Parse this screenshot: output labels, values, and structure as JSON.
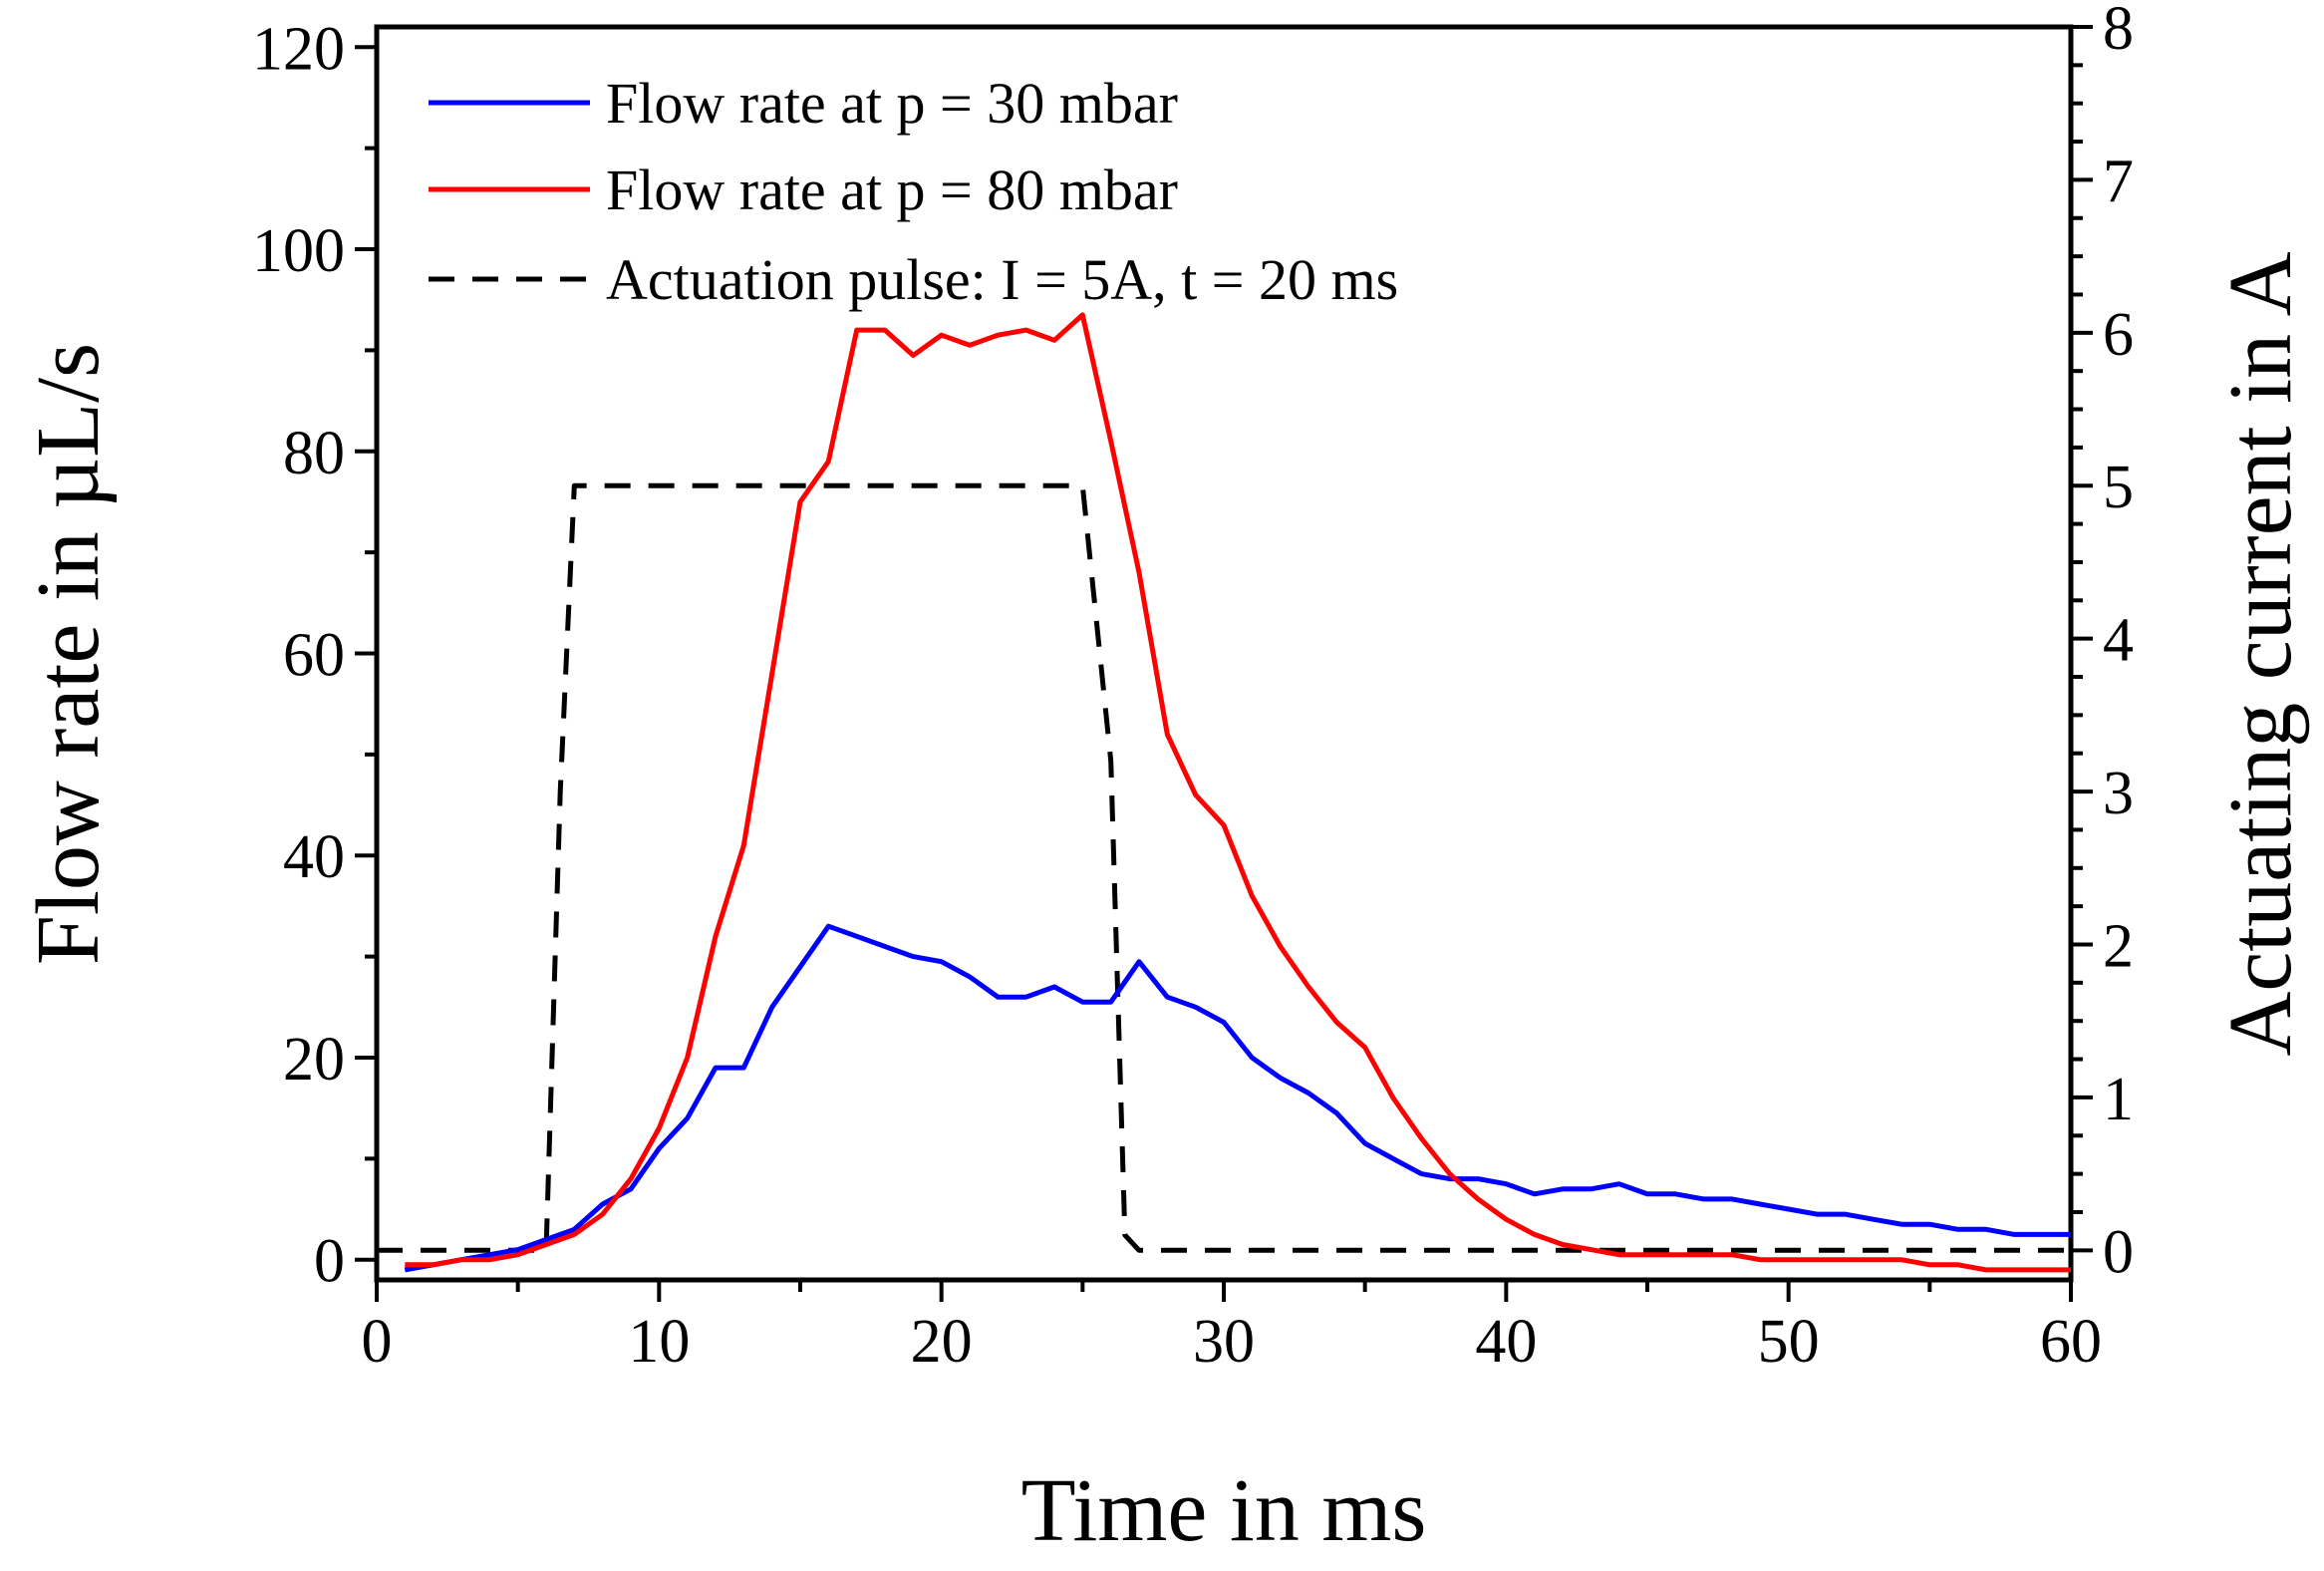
{
  "chart_data": {
    "type": "line",
    "title": "",
    "xlabel": "Time in ms",
    "ylabel": "Flow rate in µL/s",
    "y2label": "Actuating current  in A",
    "xlim": [
      0,
      60
    ],
    "ylim": [
      -2,
      122
    ],
    "y2lim": [
      -0.1935,
      8.0
    ],
    "xticks": [
      0,
      10,
      20,
      30,
      40,
      50,
      60
    ],
    "yticks": [
      0,
      20,
      40,
      60,
      80,
      100,
      120
    ],
    "y2ticks": [
      0,
      1,
      2,
      3,
      4,
      5,
      6,
      7,
      8
    ],
    "legend_position": "top-left",
    "series": [
      {
        "name": "Flow rate at p = 30 mbar",
        "axis": "left",
        "color": "#0000ff",
        "dash": "solid",
        "x": [
          1,
          2,
          3,
          4,
          5,
          6,
          7,
          8,
          9,
          10,
          11,
          12,
          13,
          14,
          15,
          16,
          17,
          18,
          19,
          20,
          21,
          22,
          23,
          24,
          25,
          26,
          27,
          28,
          29,
          30,
          31,
          32,
          33,
          34,
          35,
          36,
          37,
          38,
          39,
          40,
          41,
          42,
          43,
          44,
          45,
          46,
          47,
          48,
          49,
          50,
          51,
          52,
          53,
          54,
          55,
          56,
          57,
          58,
          59,
          60
        ],
        "y": [
          -1,
          -0.5,
          0,
          0.5,
          1,
          2,
          3,
          5.5,
          7,
          11,
          14,
          19,
          19,
          25,
          29,
          33,
          32,
          31,
          30,
          29.5,
          28,
          26,
          26,
          27,
          25.5,
          25.5,
          29.5,
          26,
          25,
          23.5,
          20,
          18,
          16.5,
          14.5,
          11.5,
          10,
          8.5,
          8,
          8,
          7.5,
          6.5,
          7,
          7,
          7.5,
          6.5,
          6.5,
          6,
          6,
          5.5,
          5,
          4.5,
          4.5,
          4,
          3.5,
          3.5,
          3,
          3,
          2.5,
          2.5,
          2.5
        ]
      },
      {
        "name": "Flow rate at p = 80 mbar",
        "axis": "left",
        "color": "#ff0000",
        "dash": "solid",
        "x": [
          1,
          2,
          3,
          4,
          5,
          6,
          7,
          8,
          9,
          10,
          11,
          12,
          13,
          14,
          15,
          16,
          17,
          18,
          19,
          20,
          21,
          22,
          23,
          24,
          25,
          26,
          27,
          28,
          29,
          30,
          31,
          32,
          33,
          34,
          35,
          36,
          37,
          38,
          39,
          40,
          41,
          42,
          43,
          44,
          45,
          46,
          47,
          48,
          49,
          50,
          51,
          52,
          53,
          54,
          55,
          56,
          57,
          58,
          59,
          60
        ],
        "y": [
          -0.5,
          -0.5,
          0,
          0,
          0.5,
          1.5,
          2.5,
          4.5,
          8,
          13,
          20,
          32,
          41,
          58,
          75,
          79,
          92,
          92,
          89.5,
          91.5,
          90.5,
          91.5,
          92,
          91,
          93.5,
          81,
          68,
          52,
          46,
          43,
          36,
          31,
          27,
          23.5,
          21,
          16,
          12,
          8.5,
          6,
          4,
          2.5,
          1.5,
          1,
          0.5,
          0.5,
          0.5,
          0.5,
          0.5,
          0,
          0,
          0,
          0,
          0,
          0,
          -0.5,
          -0.5,
          -1,
          -1,
          -1,
          -1
        ]
      },
      {
        "name": "Actuation pulse: I = 5A, t = 20 ms",
        "axis": "right",
        "color": "#000000",
        "dash": "dashed",
        "x": [
          0,
          6,
          6.5,
          7,
          25,
          26,
          26.5,
          27,
          60
        ],
        "y": [
          0,
          0,
          3.0,
          5.0,
          5.0,
          3.2,
          0.1,
          0,
          0
        ]
      }
    ]
  }
}
